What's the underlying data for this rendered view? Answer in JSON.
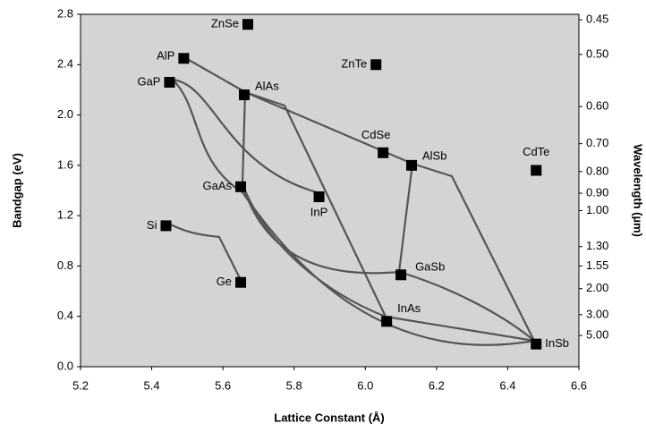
{
  "chart_data": {
    "type": "scatter",
    "xlabel": "Lattice Constant (Å)",
    "ylabel": "Bandgap (eV)",
    "y2label": "Wavelength (µm)",
    "labels": [
      "ZnSe",
      "AlP",
      "GaP",
      "AlAs",
      "ZnTe",
      "CdSe",
      "AlSb",
      "CdTe",
      "GaAs",
      "InP",
      "Si",
      "Ge",
      "GaSb",
      "InAs",
      "InSb"
    ],
    "x": [
      5.67,
      5.49,
      5.45,
      5.66,
      6.03,
      6.05,
      6.13,
      6.48,
      5.65,
      5.87,
      5.44,
      5.65,
      6.1,
      6.06,
      6.48
    ],
    "values": [
      2.72,
      2.45,
      2.26,
      2.16,
      2.4,
      1.7,
      1.6,
      1.56,
      1.43,
      1.35,
      1.12,
      0.67,
      0.73,
      0.36,
      0.18
    ],
    "color": "#000000",
    "xlim": [
      5.2,
      6.6
    ],
    "xticks": [
      5.2,
      5.4,
      5.6,
      5.8,
      {
        "value": 6,
        "label": "6.0"
      },
      6.2,
      6.4,
      6.6
    ],
    "ylim": [
      0,
      2.8
    ],
    "yticks": [
      {
        "value": 0,
        "label": "0.0"
      },
      0.4,
      0.8,
      1.2,
      1.6,
      {
        "value": 2,
        "label": "2.0"
      },
      2.4,
      2.8
    ],
    "y2scale": "reciprocal",
    "y2lim": [
      null,
      0.443
    ],
    "y2ticks": [
      0.45,
      {
        "value": 0.5,
        "label": "0.50"
      },
      {
        "value": 0.6,
        "label": "0.60"
      },
      {
        "value": 0.7,
        "label": "0.70"
      },
      {
        "value": 0.8,
        "label": "0.80"
      },
      {
        "value": 0.9,
        "label": "0.90"
      },
      {
        "value": 1,
        "label": "1.00"
      },
      {
        "value": 1.3,
        "label": "1.30"
      },
      1.55,
      {
        "value": 2,
        "label": "2.00"
      },
      {
        "value": 3,
        "label": "3.00"
      },
      {
        "value": 5,
        "label": "5.00"
      }
    ]
  }
}
